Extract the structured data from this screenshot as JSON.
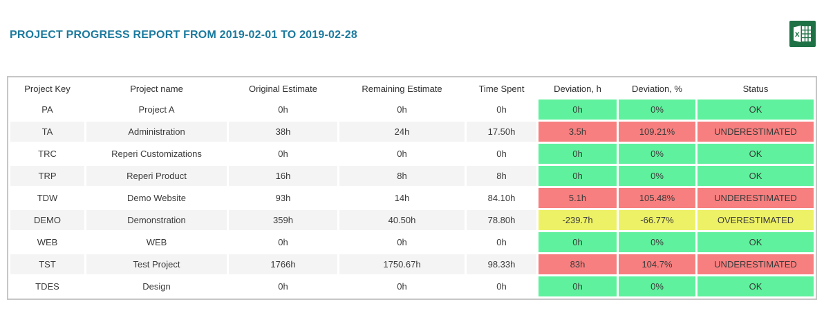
{
  "title": "PROJECT PROGRESS REPORT FROM 2019-02-01 TO 2019-02-28",
  "export_icon": "excel-icon",
  "colors": {
    "title": "#1b7a9e",
    "excel_green": "#1e7145",
    "table_border": "#c6c6c6",
    "row_stripe": "#f4f4f4",
    "status_ok": "#5ff19d",
    "status_underestimated": "#f77f7f",
    "status_overestimated": "#edf166",
    "text": "#3a3a3a"
  },
  "table": {
    "columns": [
      "Project Key",
      "Project name",
      "Original Estimate",
      "Remaining Estimate",
      "Time Spent",
      "Deviation, h",
      "Deviation, %",
      "Status"
    ],
    "rows": [
      {
        "key": "PA",
        "name": "Project A",
        "original": "0h",
        "remaining": "0h",
        "spent": "0h",
        "dev_h": "0h",
        "dev_pct": "0%",
        "status": "OK",
        "status_type": "ok"
      },
      {
        "key": "TA",
        "name": "Administration",
        "original": "38h",
        "remaining": "24h",
        "spent": "17.50h",
        "dev_h": "3.5h",
        "dev_pct": "109.21%",
        "status": "UNDERESTIMATED",
        "status_type": "underestimated"
      },
      {
        "key": "TRC",
        "name": "Reperi Customizations",
        "original": "0h",
        "remaining": "0h",
        "spent": "0h",
        "dev_h": "0h",
        "dev_pct": "0%",
        "status": "OK",
        "status_type": "ok"
      },
      {
        "key": "TRP",
        "name": "Reperi Product",
        "original": "16h",
        "remaining": "8h",
        "spent": "8h",
        "dev_h": "0h",
        "dev_pct": "0%",
        "status": "OK",
        "status_type": "ok"
      },
      {
        "key": "TDW",
        "name": "Demo Website",
        "original": "93h",
        "remaining": "14h",
        "spent": "84.10h",
        "dev_h": "5.1h",
        "dev_pct": "105.48%",
        "status": "UNDERESTIMATED",
        "status_type": "underestimated"
      },
      {
        "key": "DEMO",
        "name": "Demonstration",
        "original": "359h",
        "remaining": "40.50h",
        "spent": "78.80h",
        "dev_h": "-239.7h",
        "dev_pct": "-66.77%",
        "status": "OVERESTIMATED",
        "status_type": "overestimated"
      },
      {
        "key": "WEB",
        "name": "WEB",
        "original": "0h",
        "remaining": "0h",
        "spent": "0h",
        "dev_h": "0h",
        "dev_pct": "0%",
        "status": "OK",
        "status_type": "ok"
      },
      {
        "key": "TST",
        "name": "Test Project",
        "original": "1766h",
        "remaining": "1750.67h",
        "spent": "98.33h",
        "dev_h": "83h",
        "dev_pct": "104.7%",
        "status": "UNDERESTIMATED",
        "status_type": "underestimated"
      },
      {
        "key": "TDES",
        "name": "Design",
        "original": "0h",
        "remaining": "0h",
        "spent": "0h",
        "dev_h": "0h",
        "dev_pct": "0%",
        "status": "OK",
        "status_type": "ok"
      }
    ]
  }
}
